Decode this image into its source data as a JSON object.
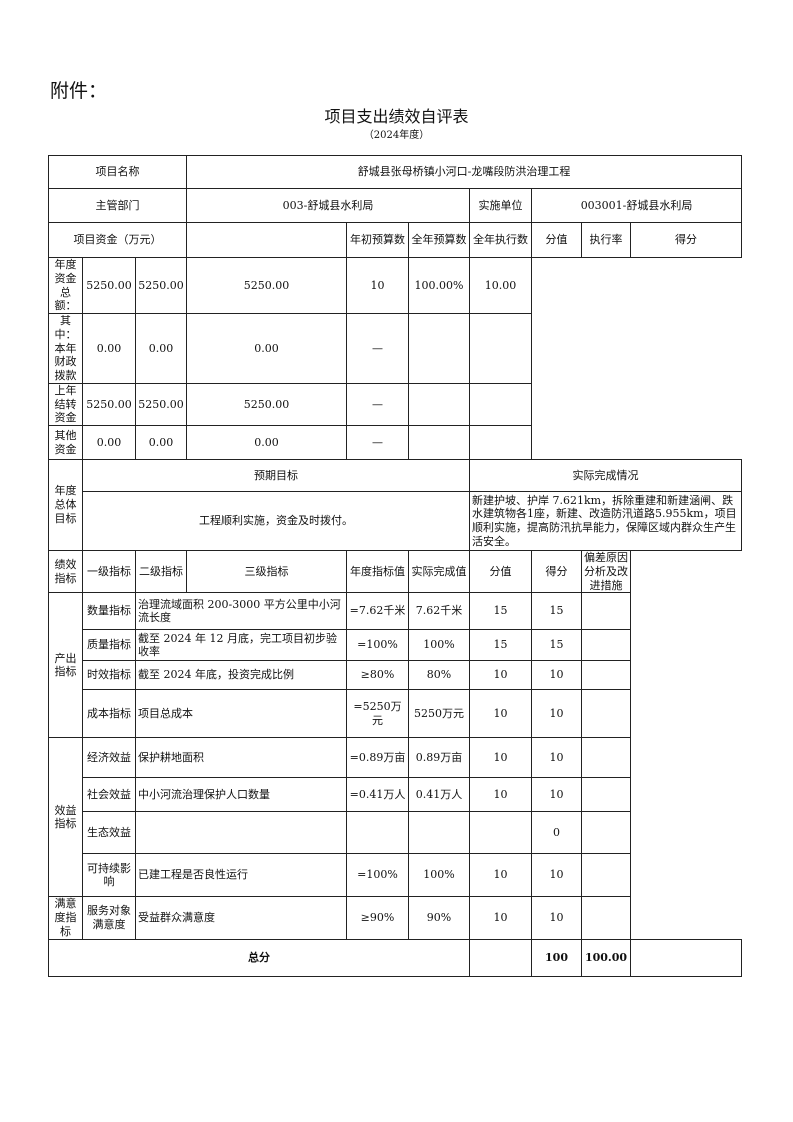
{
  "attachment": "附件：",
  "title": "项目支出绩效自评表",
  "year": "（2024年度）",
  "basic": {
    "name_label": "项目名称",
    "name": "舒城县张母桥镇小河口-龙嘴段防洪治理工程",
    "dept_label": "主管部门",
    "dept": "003-舒城县水利局",
    "unit_label": "实施单位",
    "unit": "003001-舒城县水利局"
  },
  "funds": {
    "label": "项目资金（万元）",
    "headers": [
      "年初预算数",
      "全年预算数",
      "全年执行数",
      "分值",
      "执行率",
      "得分"
    ],
    "rows": [
      [
        "年度资金总额：",
        "5250.00",
        "5250.00",
        "5250.00",
        "10",
        "100.00%",
        "10.00"
      ],
      [
        "其中：本年财政拨款",
        "0.00",
        "0.00",
        "0.00",
        "—",
        "",
        ""
      ],
      [
        "上年结转资金",
        "5250.00",
        "5250.00",
        "5250.00",
        "—",
        "",
        ""
      ],
      [
        "其他资金",
        "0.00",
        "0.00",
        "0.00",
        "—",
        "",
        ""
      ]
    ]
  },
  "goal": {
    "label": "年度总体目标",
    "expected_label": "预期目标",
    "actual_label": "实际完成情况",
    "expected": "工程顺利实施，资金及时拨付。",
    "actual": "新建护坡、护岸 7.621km，拆除重建和新建涵闸、跌水建筑物各1座，新建、改造防汛道路5.955km，项目顺利实施，提高防汛抗旱能力，保障区域内群众生产生活安全。"
  },
  "perf": {
    "label": "绩效指标",
    "headers": [
      "一级指标",
      "二级指标",
      "三级指标",
      "年度指标值",
      "实际完成值",
      "分值",
      "得分",
      "偏差原因分析及改进措施"
    ],
    "groups": [
      "产出指标",
      "效益指标",
      "满意度指标"
    ],
    "rows": [
      [
        "数量指标",
        "治理流域面积 200-3000 平方公里中小河流长度",
        "=7.62千米",
        "7.62千米",
        "15",
        "15",
        ""
      ],
      [
        "质量指标",
        "截至 2024 年 12 月底，完工项目初步验收率",
        "=100%",
        "100%",
        "15",
        "15",
        ""
      ],
      [
        "时效指标",
        "截至 2024 年底，投资完成比例",
        "≥80%",
        "80%",
        "10",
        "10",
        ""
      ],
      [
        "成本指标",
        "项目总成本",
        "=5250万元",
        "5250万元",
        "10",
        "10",
        ""
      ],
      [
        "经济效益",
        "保护耕地面积",
        "=0.89万亩",
        "0.89万亩",
        "10",
        "10",
        ""
      ],
      [
        "社会效益",
        "中小河流治理保护人口数量",
        "=0.41万人",
        "0.41万人",
        "10",
        "10",
        ""
      ],
      [
        "生态效益",
        "",
        "",
        "",
        "",
        "0",
        ""
      ],
      [
        "可持续影响",
        "已建工程是否良性运行",
        "=100%",
        "100%",
        "10",
        "10",
        ""
      ],
      [
        "服务对象满意度",
        "受益群众满意度",
        "≥90%",
        "90%",
        "10",
        "10",
        ""
      ]
    ]
  },
  "total": {
    "label": "总分",
    "score": "100",
    "got": "100.00"
  }
}
